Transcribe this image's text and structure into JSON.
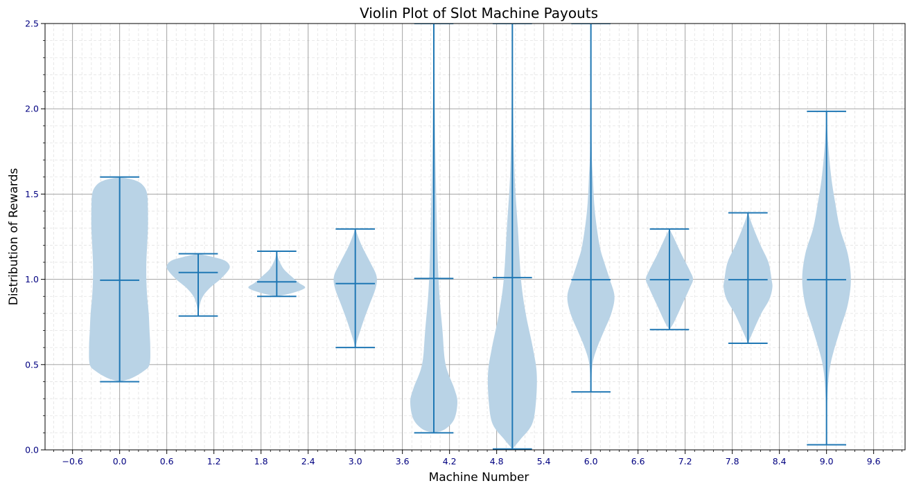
{
  "chart_data": {
    "type": "violin",
    "title": "Violin Plot of Slot Machine Payouts",
    "xlabel": "Machine Number",
    "ylabel": "Distribution of Rewards",
    "xlim": [
      -0.95,
      10.0
    ],
    "ylim": [
      0,
      2.5
    ],
    "x_ticks": [
      -0.6,
      0.0,
      0.6,
      1.2,
      1.8,
      2.4,
      3.0,
      3.6,
      4.2,
      4.8,
      5.4,
      6.0,
      6.6,
      7.2,
      7.8,
      8.4,
      9.0,
      9.6
    ],
    "x_tick_labels": [
      "−0.6",
      "0.0",
      "0.6",
      "1.2",
      "1.8",
      "2.4",
      "3.0",
      "3.6",
      "4.2",
      "4.8",
      "5.4",
      "6.0",
      "6.6",
      "7.2",
      "7.8",
      "8.4",
      "9.0",
      "9.6"
    ],
    "y_ticks": [
      0.0,
      0.5,
      1.0,
      1.5,
      2.0,
      2.5
    ],
    "y_tick_labels": [
      "0.0",
      "0.5",
      "1.0",
      "1.5",
      "2.0",
      "2.5"
    ],
    "grid": {
      "major": true,
      "minor": true
    },
    "colors": {
      "violin_fill": "#b9d3e6",
      "line": "#1f77b4",
      "tick_label": "#000080",
      "major_grid": "#999999",
      "minor_grid": "#e2e2e2"
    },
    "violins": [
      {
        "machine": 0,
        "min": 0.4,
        "median": 0.995,
        "max": 1.6,
        "profile": [
          [
            0.4,
            0.0
          ],
          [
            0.42,
            0.15
          ],
          [
            0.46,
            0.3
          ],
          [
            0.5,
            0.38
          ],
          [
            0.6,
            0.39
          ],
          [
            0.7,
            0.38
          ],
          [
            0.8,
            0.37
          ],
          [
            0.9,
            0.35
          ],
          [
            1.0,
            0.34
          ],
          [
            1.1,
            0.34
          ],
          [
            1.2,
            0.35
          ],
          [
            1.3,
            0.36
          ],
          [
            1.4,
            0.36
          ],
          [
            1.5,
            0.35
          ],
          [
            1.55,
            0.3
          ],
          [
            1.58,
            0.2
          ],
          [
            1.6,
            0.0
          ]
        ]
      },
      {
        "machine": 1,
        "min": 0.785,
        "median": 1.04,
        "max": 1.15,
        "profile": [
          [
            0.785,
            0.0
          ],
          [
            0.85,
            0.02
          ],
          [
            0.9,
            0.06
          ],
          [
            0.95,
            0.15
          ],
          [
            1.0,
            0.28
          ],
          [
            1.05,
            0.38
          ],
          [
            1.08,
            0.4
          ],
          [
            1.11,
            0.34
          ],
          [
            1.13,
            0.2
          ],
          [
            1.15,
            0.0
          ]
        ]
      },
      {
        "machine": 2,
        "min": 0.9,
        "median": 0.985,
        "max": 1.165,
        "profile": [
          [
            0.9,
            0.0
          ],
          [
            0.92,
            0.2
          ],
          [
            0.95,
            0.36
          ],
          [
            0.98,
            0.28
          ],
          [
            1.02,
            0.18
          ],
          [
            1.06,
            0.09
          ],
          [
            1.1,
            0.04
          ],
          [
            1.13,
            0.015
          ],
          [
            1.165,
            0.0
          ]
        ]
      },
      {
        "machine": 3,
        "min": 0.6,
        "median": 0.975,
        "max": 1.295,
        "profile": [
          [
            0.6,
            0.0
          ],
          [
            0.65,
            0.03
          ],
          [
            0.75,
            0.1
          ],
          [
            0.85,
            0.18
          ],
          [
            0.95,
            0.26
          ],
          [
            1.02,
            0.27
          ],
          [
            1.1,
            0.19
          ],
          [
            1.2,
            0.08
          ],
          [
            1.295,
            0.0
          ]
        ]
      },
      {
        "machine": 4,
        "min": 0.1,
        "median": 1.005,
        "max": 2.5,
        "profile": [
          [
            0.1,
            0.0
          ],
          [
            0.12,
            0.14
          ],
          [
            0.18,
            0.26
          ],
          [
            0.28,
            0.3
          ],
          [
            0.36,
            0.26
          ],
          [
            0.5,
            0.15
          ],
          [
            0.7,
            0.11
          ],
          [
            1.0,
            0.06
          ],
          [
            1.5,
            0.03
          ],
          [
            2.0,
            0.012
          ],
          [
            2.5,
            0.004
          ]
        ]
      },
      {
        "machine": 5,
        "min": 0.005,
        "median": 1.01,
        "max": 2.5,
        "profile": [
          [
            0.005,
            0.0
          ],
          [
            0.06,
            0.1
          ],
          [
            0.15,
            0.25
          ],
          [
            0.28,
            0.3
          ],
          [
            0.45,
            0.31
          ],
          [
            0.6,
            0.26
          ],
          [
            0.8,
            0.17
          ],
          [
            1.0,
            0.11
          ],
          [
            1.3,
            0.07
          ],
          [
            1.6,
            0.03
          ],
          [
            2.0,
            0.01
          ],
          [
            2.5,
            0.004
          ]
        ]
      },
      {
        "machine": 6,
        "min": 0.34,
        "median": 0.998,
        "max": 2.5,
        "profile": [
          [
            0.34,
            0.0
          ],
          [
            0.5,
            0.02
          ],
          [
            0.6,
            0.08
          ],
          [
            0.7,
            0.17
          ],
          [
            0.8,
            0.26
          ],
          [
            0.9,
            0.3
          ],
          [
            1.0,
            0.24
          ],
          [
            1.1,
            0.17
          ],
          [
            1.2,
            0.11
          ],
          [
            1.4,
            0.05
          ],
          [
            1.6,
            0.025
          ],
          [
            1.8,
            0.01
          ],
          [
            2.5,
            0.002
          ]
        ]
      },
      {
        "machine": 7,
        "min": 0.705,
        "median": 0.998,
        "max": 1.295,
        "profile": [
          [
            0.705,
            0.0
          ],
          [
            0.75,
            0.06
          ],
          [
            0.85,
            0.16
          ],
          [
            0.95,
            0.26
          ],
          [
            1.0,
            0.3
          ],
          [
            1.05,
            0.26
          ],
          [
            1.15,
            0.15
          ],
          [
            1.25,
            0.05
          ],
          [
            1.295,
            0.0
          ]
        ]
      },
      {
        "machine": 8,
        "min": 0.625,
        "median": 0.998,
        "max": 1.39,
        "profile": [
          [
            0.625,
            0.0
          ],
          [
            0.7,
            0.07
          ],
          [
            0.8,
            0.17
          ],
          [
            0.88,
            0.27
          ],
          [
            0.95,
            0.31
          ],
          [
            1.0,
            0.3
          ],
          [
            1.1,
            0.26
          ],
          [
            1.2,
            0.16
          ],
          [
            1.3,
            0.07
          ],
          [
            1.39,
            0.0
          ]
        ]
      },
      {
        "machine": 9,
        "min": 0.03,
        "median": 0.998,
        "max": 1.985,
        "profile": [
          [
            0.03,
            0.0
          ],
          [
            0.3,
            0.01
          ],
          [
            0.5,
            0.05
          ],
          [
            0.7,
            0.17
          ],
          [
            0.85,
            0.27
          ],
          [
            1.0,
            0.31
          ],
          [
            1.15,
            0.27
          ],
          [
            1.3,
            0.17
          ],
          [
            1.45,
            0.11
          ],
          [
            1.6,
            0.06
          ],
          [
            1.8,
            0.02
          ],
          [
            1.985,
            0.0
          ]
        ]
      }
    ]
  }
}
